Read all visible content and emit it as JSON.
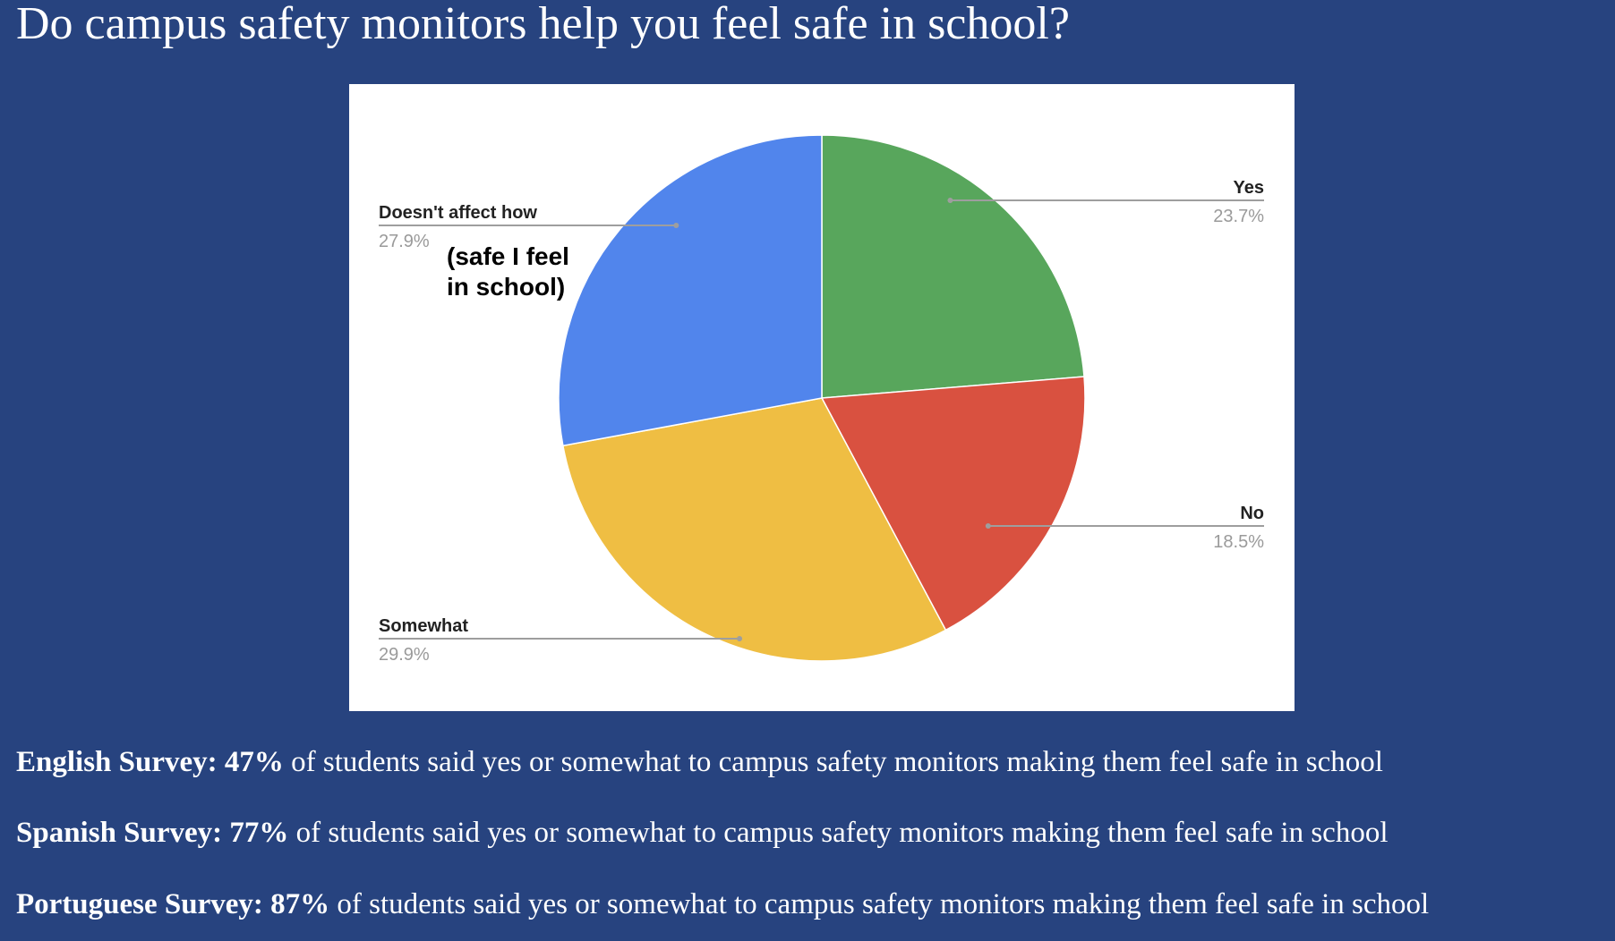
{
  "title": "Do campus safety monitors help you feel safe in school?",
  "chart_data": {
    "type": "pie",
    "title": "",
    "slices": [
      {
        "label": "Yes",
        "value": 23.7,
        "display": "23.7%",
        "color": "#58a65c"
      },
      {
        "label": "No",
        "value": 18.5,
        "display": "18.5%",
        "color": "#d95140"
      },
      {
        "label": "Somewhat",
        "value": 29.9,
        "display": "29.9%",
        "color": "#efbe43"
      },
      {
        "label": "Doesn't affect how",
        "value": 27.9,
        "display": "27.9%",
        "color": "#5185ec"
      }
    ],
    "start": "12 o'clock, clockwise",
    "annotation": [
      "(safe I feel",
      "in school)"
    ],
    "leader_line_color": "#9e9e9e"
  },
  "summaries": [
    {
      "bold": "English Survey: 47%",
      "text": " of students said yes or somewhat to campus safety monitors making them feel safe in school"
    },
    {
      "bold": "Spanish Survey: 77%",
      "text": " of students said yes or somewhat to campus safety monitors making them feel safe in school"
    },
    {
      "bold": "Portuguese Survey: 87%",
      "text": " of students said yes or somewhat to campus safety monitors making them feel safe in school"
    }
  ]
}
